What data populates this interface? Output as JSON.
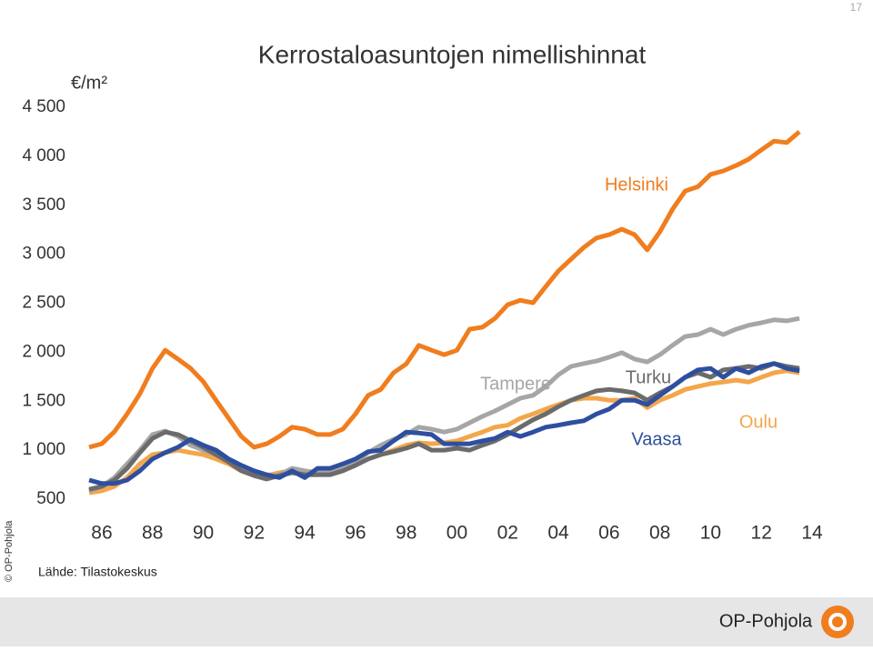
{
  "page_number": "17",
  "source": "Lähde: Tilastokeskus",
  "copyright": "© OP-Pohjola",
  "footer_brand": "OP-Pohjola",
  "chart_data": {
    "type": "line",
    "title": "Kerrostaloasuntojen nimellishinnat",
    "y_unit": "€/m²",
    "xlim": [
      1986,
      2014.75
    ],
    "ylim": [
      500,
      4500
    ],
    "xticks": [
      {
        "value": 1986.5,
        "label": "86"
      },
      {
        "value": 1988.5,
        "label": "88"
      },
      {
        "value": 1990.5,
        "label": "90"
      },
      {
        "value": 1992.5,
        "label": "92"
      },
      {
        "value": 1994.5,
        "label": "94"
      },
      {
        "value": 1996.5,
        "label": "96"
      },
      {
        "value": 1998.5,
        "label": "98"
      },
      {
        "value": 2000.5,
        "label": "00"
      },
      {
        "value": 2002.5,
        "label": "02"
      },
      {
        "value": 2004.5,
        "label": "04"
      },
      {
        "value": 2006.5,
        "label": "06"
      },
      {
        "value": 2008.5,
        "label": "08"
      },
      {
        "value": 2010.5,
        "label": "10"
      },
      {
        "value": 2012.5,
        "label": "12"
      },
      {
        "value": 2014.5,
        "label": "14"
      }
    ],
    "yticks": [
      500,
      {
        "value": 1000,
        "label": "1 000"
      },
      {
        "value": 1500,
        "label": "1 500"
      },
      {
        "value": 2000,
        "label": "2 000"
      },
      {
        "value": 2500,
        "label": "2 500"
      },
      {
        "value": 3000,
        "label": "3 000"
      },
      {
        "value": 3500,
        "label": "3 500"
      },
      {
        "value": 4000,
        "label": "4 000"
      },
      {
        "value": 4500,
        "label": "4 500"
      }
    ],
    "grid": false,
    "x": [
      1986,
      1986.5,
      1987,
      1987.5,
      1988,
      1988.5,
      1989,
      1989.5,
      1990,
      1990.5,
      1991,
      1991.5,
      1992,
      1992.5,
      1993,
      1993.5,
      1994,
      1994.5,
      1995,
      1995.5,
      1996,
      1996.5,
      1997,
      1997.5,
      1998,
      1998.5,
      1999,
      1999.5,
      2000,
      2000.5,
      2001,
      2001.5,
      2002,
      2002.5,
      2003,
      2003.5,
      2004,
      2004.5,
      2005,
      2005.5,
      2006,
      2006.5,
      2007,
      2007.5,
      2008,
      2008.5,
      2009,
      2009.5,
      2010,
      2010.5,
      2011,
      2011.5,
      2012,
      2012.5,
      2013,
      2013.5,
      2014
    ],
    "series": [
      {
        "name": "Helsinki",
        "color": "#f07d1e",
        "values": [
          1030,
          1065,
          1190,
          1370,
          1575,
          1835,
          2020,
          1930,
          1835,
          1700,
          1510,
          1325,
          1140,
          1030,
          1065,
          1140,
          1235,
          1215,
          1160,
          1160,
          1215,
          1370,
          1560,
          1620,
          1790,
          1880,
          2070,
          2020,
          1975,
          2020,
          2235,
          2255,
          2345,
          2485,
          2530,
          2505,
          2670,
          2830,
          2950,
          3070,
          3165,
          3200,
          3255,
          3200,
          3045,
          3230,
          3460,
          3645,
          3690,
          3815,
          3850,
          3905,
          3970,
          4065,
          4155,
          4140,
          4250
        ]
      },
      {
        "name": "Tampere",
        "color": "#a6a6a6",
        "values": [
          585,
          630,
          720,
          860,
          1000,
          1160,
          1195,
          1140,
          1050,
          1000,
          955,
          910,
          815,
          750,
          720,
          750,
          815,
          790,
          770,
          770,
          815,
          880,
          975,
          1050,
          1110,
          1160,
          1235,
          1215,
          1185,
          1215,
          1280,
          1345,
          1400,
          1465,
          1530,
          1560,
          1650,
          1770,
          1855,
          1885,
          1910,
          1950,
          1995,
          1930,
          1900,
          1975,
          2070,
          2160,
          2180,
          2235,
          2180,
          2235,
          2275,
          2300,
          2330,
          2320,
          2345
        ]
      },
      {
        "name": "Turku",
        "color": "#6b6b6b",
        "values": [
          600,
          630,
          695,
          815,
          975,
          1120,
          1185,
          1160,
          1095,
          1030,
          955,
          880,
          790,
          740,
          705,
          740,
          770,
          750,
          750,
          750,
          790,
          845,
          910,
          955,
          985,
          1020,
          1065,
          1000,
          1000,
          1020,
          1000,
          1050,
          1095,
          1160,
          1235,
          1310,
          1370,
          1445,
          1510,
          1560,
          1605,
          1620,
          1605,
          1585,
          1510,
          1585,
          1650,
          1745,
          1790,
          1745,
          1820,
          1835,
          1855,
          1835,
          1885,
          1855,
          1835
        ]
      },
      {
        "name": "Vaasa",
        "color": "#2e4f9f",
        "values": [
          695,
          660,
          660,
          695,
          790,
          910,
          975,
          1030,
          1110,
          1050,
          1000,
          910,
          845,
          790,
          750,
          720,
          790,
          720,
          815,
          815,
          860,
          910,
          985,
          1000,
          1095,
          1185,
          1175,
          1160,
          1065,
          1065,
          1065,
          1095,
          1120,
          1185,
          1140,
          1185,
          1235,
          1255,
          1280,
          1300,
          1370,
          1420,
          1510,
          1510,
          1465,
          1560,
          1650,
          1745,
          1820,
          1835,
          1745,
          1835,
          1790,
          1855,
          1885,
          1835,
          1810
        ]
      },
      {
        "name": "Oulu",
        "color": "#f4a64a",
        "values": [
          565,
          585,
          630,
          720,
          860,
          955,
          975,
          1000,
          975,
          955,
          910,
          860,
          790,
          750,
          740,
          770,
          790,
          750,
          750,
          770,
          815,
          860,
          910,
          955,
          1000,
          1050,
          1075,
          1065,
          1075,
          1095,
          1140,
          1185,
          1235,
          1255,
          1325,
          1370,
          1420,
          1465,
          1510,
          1530,
          1530,
          1510,
          1510,
          1530,
          1435,
          1510,
          1560,
          1620,
          1650,
          1680,
          1695,
          1715,
          1695,
          1745,
          1790,
          1810,
          1790
        ]
      }
    ]
  }
}
